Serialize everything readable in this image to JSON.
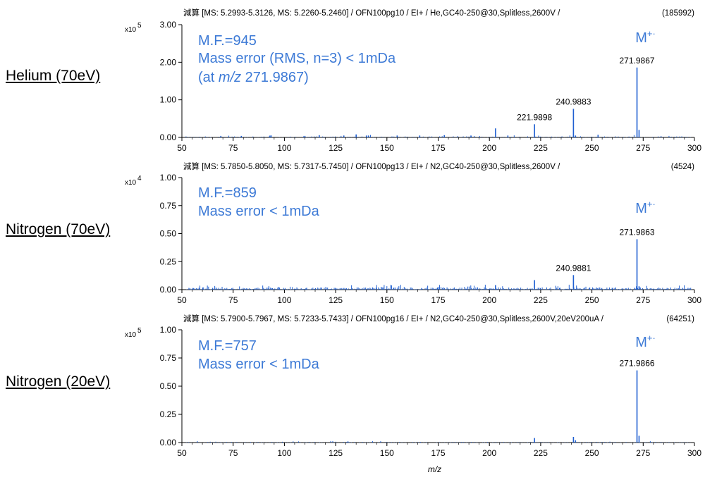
{
  "chart_data": [
    {
      "type": "bar",
      "row_label": "Helium (70eV)",
      "header_left": "減算 [MS: 5.2993-5.3126, MS: 5.2260-5.2460] / OFN100pg10 / EI+ / He,GC40-250@30,Splitless,2600V /",
      "header_right": "(185992)",
      "y_multiplier": "x10",
      "y_exponent": "5",
      "ylim": [
        0,
        3.0
      ],
      "yticks": [
        "0.00",
        "1.00",
        "2.00",
        "3.00"
      ],
      "xlim": [
        50,
        300
      ],
      "xticks": [
        "50",
        "75",
        "100",
        "125",
        "150",
        "175",
        "200",
        "225",
        "250",
        "275",
        "300"
      ],
      "annotation_lines": [
        {
          "text": "M.F.=945"
        },
        {
          "text": "Mass error (RMS, n=3) < 1mDa"
        },
        {
          "prefix": "(at ",
          "italic": "m/z",
          "suffix": " 271.9867)"
        }
      ],
      "ion_label": "M",
      "ion_sup": "+·",
      "peaks": [
        {
          "x": 271.9867,
          "y": 1.86,
          "label": "271.9867"
        },
        {
          "x": 240.9883,
          "y": 0.76,
          "label": "240.9883"
        },
        {
          "x": 221.9898,
          "y": 0.35,
          "label": "221.9898"
        },
        {
          "x": 202.99,
          "y": 0.24
        },
        {
          "x": 272.99,
          "y": 0.2
        },
        {
          "x": 252.99,
          "y": 0.07
        },
        {
          "x": 241.99,
          "y": 0.05
        },
        {
          "x": 135.0,
          "y": 0.08
        },
        {
          "x": 117.0,
          "y": 0.06
        },
        {
          "x": 129.0,
          "y": 0.05
        },
        {
          "x": 140.0,
          "y": 0.05
        },
        {
          "x": 141.0,
          "y": 0.05
        },
        {
          "x": 155.0,
          "y": 0.05
        },
        {
          "x": 166.0,
          "y": 0.05
        },
        {
          "x": 178.0,
          "y": 0.06
        },
        {
          "x": 191.0,
          "y": 0.05
        },
        {
          "x": 209.0,
          "y": 0.05
        },
        {
          "x": 93.0,
          "y": 0.05
        },
        {
          "x": 79.0,
          "y": 0.04
        },
        {
          "x": 69.0,
          "y": 0.04
        },
        {
          "x": 110.0,
          "y": 0.04
        }
      ],
      "noise_level": 0.03
    },
    {
      "type": "bar",
      "row_label": "Nitrogen (70eV)",
      "header_left": "減算 [MS: 5.7850-5.8050, MS: 5.7317-5.7450] / OFN100pg13 / EI+ / N2,GC40-250@30,Splitless,2600V /",
      "header_right": "(4524)",
      "y_multiplier": "x10",
      "y_exponent": "4",
      "ylim": [
        0,
        1.0
      ],
      "yticks": [
        "0.00",
        "0.25",
        "0.50",
        "0.75",
        "1.00"
      ],
      "xlim": [
        50,
        300
      ],
      "xticks": [
        "50",
        "75",
        "100",
        "125",
        "150",
        "175",
        "200",
        "225",
        "250",
        "275",
        "300"
      ],
      "annotation_lines": [
        {
          "text": "M.F.=859"
        },
        {
          "text": "Mass error < 1mDa"
        }
      ],
      "ion_label": "M",
      "ion_sup": "+·",
      "peaks": [
        {
          "x": 271.9863,
          "y": 0.45,
          "label": "271.9863"
        },
        {
          "x": 240.9881,
          "y": 0.13,
          "label": "240.9881"
        },
        {
          "x": 221.99,
          "y": 0.085
        },
        {
          "x": 202.99,
          "y": 0.04
        },
        {
          "x": 272.99,
          "y": 0.03
        }
      ],
      "noise_level": 0.02
    },
    {
      "type": "bar",
      "row_label": "Nitrogen (20eV)",
      "header_left": "減算 [MS: 5.7900-5.7967, MS: 5.7233-5.7433] / OFN100pg16 / EI+ / N2,GC40-250@30,Splitless,2600V,20eV200uA /",
      "header_right": "(64251)",
      "y_multiplier": "x10",
      "y_exponent": "5",
      "ylim": [
        0,
        1.0
      ],
      "yticks": [
        "0.00",
        "0.25",
        "0.50",
        "0.75",
        "1.00"
      ],
      "xlim": [
        50,
        300
      ],
      "xticks": [
        "50",
        "75",
        "100",
        "125",
        "150",
        "175",
        "200",
        "225",
        "250",
        "275",
        "300"
      ],
      "xlabel": "m/z",
      "annotation_lines": [
        {
          "text": "M.F.=757"
        },
        {
          "text": "Mass error < 1mDa"
        }
      ],
      "ion_label": "M",
      "ion_sup": "+·",
      "peaks": [
        {
          "x": 271.9866,
          "y": 0.64,
          "label": "271.9866"
        },
        {
          "x": 272.99,
          "y": 0.06
        },
        {
          "x": 240.99,
          "y": 0.05
        },
        {
          "x": 221.99,
          "y": 0.04
        },
        {
          "x": 241.99,
          "y": 0.02
        },
        {
          "x": 130.99,
          "y": 0.01
        }
      ],
      "noise_level": 0.006
    }
  ]
}
